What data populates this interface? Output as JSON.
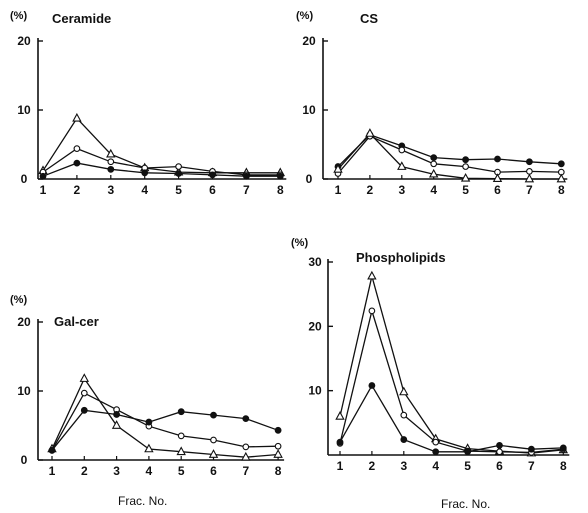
{
  "chart_data": [
    {
      "type": "line",
      "title": "Ceramide",
      "y_unit": "(%)",
      "xlabel": "",
      "x": [
        1,
        2,
        3,
        4,
        5,
        6,
        7,
        8
      ],
      "ylim": [
        0,
        20
      ],
      "yticks": [
        0,
        10,
        20
      ],
      "series": [
        {
          "marker": "triangle",
          "values": [
            1.2,
            8.8,
            3.6,
            1.6,
            1.0,
            0.9,
            0.9,
            0.9
          ]
        },
        {
          "marker": "open-circle",
          "values": [
            1.0,
            4.4,
            2.5,
            1.6,
            1.8,
            1.1,
            0.6,
            0.6
          ]
        },
        {
          "marker": "filled-circle",
          "values": [
            0.4,
            2.3,
            1.4,
            0.9,
            0.8,
            0.6,
            0.4,
            0.4
          ]
        }
      ]
    },
    {
      "type": "line",
      "title": "CS",
      "y_unit": "(%)",
      "xlabel": "",
      "x": [
        1,
        2,
        3,
        4,
        5,
        6,
        7,
        8
      ],
      "ylim": [
        0,
        20
      ],
      "yticks": [
        0,
        10,
        20
      ],
      "series": [
        {
          "marker": "filled-circle",
          "values": [
            1.8,
            6.4,
            4.8,
            3.1,
            2.8,
            2.9,
            2.5,
            2.2
          ]
        },
        {
          "marker": "open-circle",
          "values": [
            0.8,
            6.2,
            4.2,
            2.2,
            1.8,
            1.0,
            1.1,
            1.0
          ]
        },
        {
          "marker": "triangle",
          "values": [
            1.4,
            6.6,
            1.8,
            0.7,
            0.1,
            0.05,
            0.0,
            0.0
          ]
        }
      ]
    },
    {
      "type": "line",
      "title": "Gal-cer",
      "y_unit": "(%)",
      "xlabel": "Frac. No.",
      "x": [
        1,
        2,
        3,
        4,
        5,
        6,
        7,
        8
      ],
      "ylim": [
        0,
        20
      ],
      "yticks": [
        0,
        10,
        20
      ],
      "series": [
        {
          "marker": "triangle",
          "values": [
            1.6,
            11.8,
            5.0,
            1.6,
            1.2,
            0.8,
            0.4,
            0.8
          ]
        },
        {
          "marker": "open-circle",
          "values": [
            1.4,
            9.7,
            7.3,
            4.9,
            3.5,
            2.9,
            1.9,
            2.0
          ]
        },
        {
          "marker": "filled-circle",
          "values": [
            1.4,
            7.2,
            6.6,
            5.5,
            7.0,
            6.5,
            6.0,
            4.3
          ]
        }
      ]
    },
    {
      "type": "line",
      "title": "Phospholipids",
      "y_unit": "(%)",
      "xlabel": "Frac. No.",
      "x": [
        1,
        2,
        3,
        4,
        5,
        6,
        7,
        8
      ],
      "ylim": [
        0,
        30
      ],
      "yticks": [
        10,
        20,
        30
      ],
      "series": [
        {
          "marker": "triangle",
          "values": [
            6.0,
            27.8,
            9.8,
            2.5,
            1.0,
            0.6,
            0.3,
            0.8
          ]
        },
        {
          "marker": "open-circle",
          "values": [
            1.8,
            22.4,
            6.2,
            2.0,
            0.6,
            0.5,
            0.4,
            0.9
          ]
        },
        {
          "marker": "filled-circle",
          "values": [
            2.0,
            10.8,
            2.4,
            0.5,
            0.5,
            1.5,
            0.9,
            1.1
          ]
        }
      ]
    }
  ]
}
